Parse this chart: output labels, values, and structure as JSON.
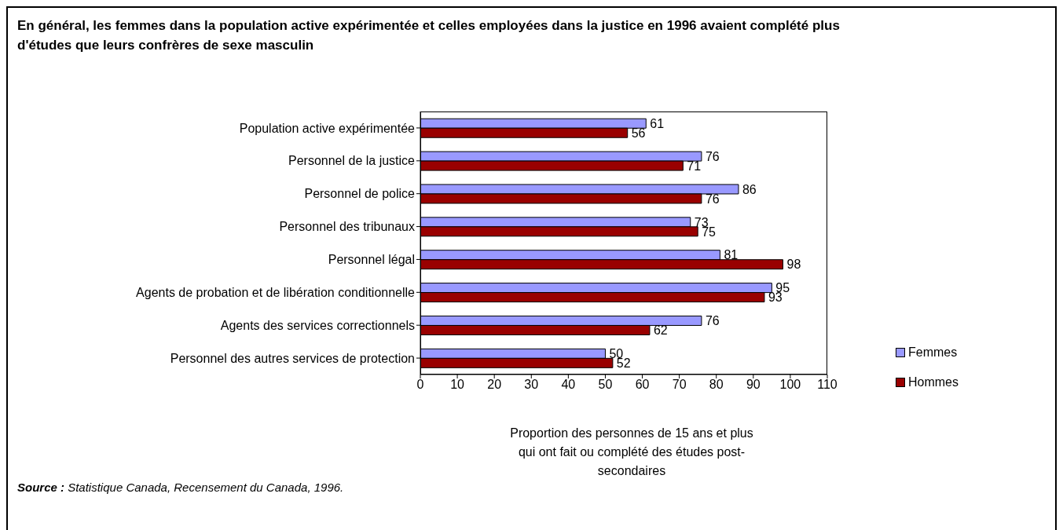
{
  "chart_data": {
    "type": "bar",
    "orientation": "horizontal",
    "title": "En général, les femmes dans la population active expérimentée et celles employées dans la justice en 1996 avaient complété plus d'études que leurs confrères de sexe masculin",
    "categories": [
      "Population active expérimentée",
      "Personnel de la justice",
      "Personnel de police",
      "Personnel des tribunaux",
      "Personnel légal",
      "Agents de probation et de libération conditionnelle",
      "Agents des services correctionnels",
      "Personnel des autres services de protection"
    ],
    "series": [
      {
        "name": "Femmes",
        "color": "#9999ff",
        "values": [
          61,
          76,
          86,
          73,
          81,
          95,
          76,
          50
        ]
      },
      {
        "name": "Hommes",
        "color": "#990000",
        "values": [
          56,
          71,
          76,
          75,
          98,
          93,
          62,
          52
        ]
      }
    ],
    "xlim": [
      0,
      110
    ],
    "xticks": [
      0,
      10,
      20,
      30,
      40,
      50,
      60,
      70,
      80,
      90,
      100,
      110
    ],
    "xlabel": "Proportion des personnes de 15 ans et plus qui ont fait ou complété des études post-secondaires",
    "data_labels": true,
    "legend": "right",
    "annotations": [
      "Source : Statistique Canada, Recensement du Canada, 1996."
    ]
  }
}
